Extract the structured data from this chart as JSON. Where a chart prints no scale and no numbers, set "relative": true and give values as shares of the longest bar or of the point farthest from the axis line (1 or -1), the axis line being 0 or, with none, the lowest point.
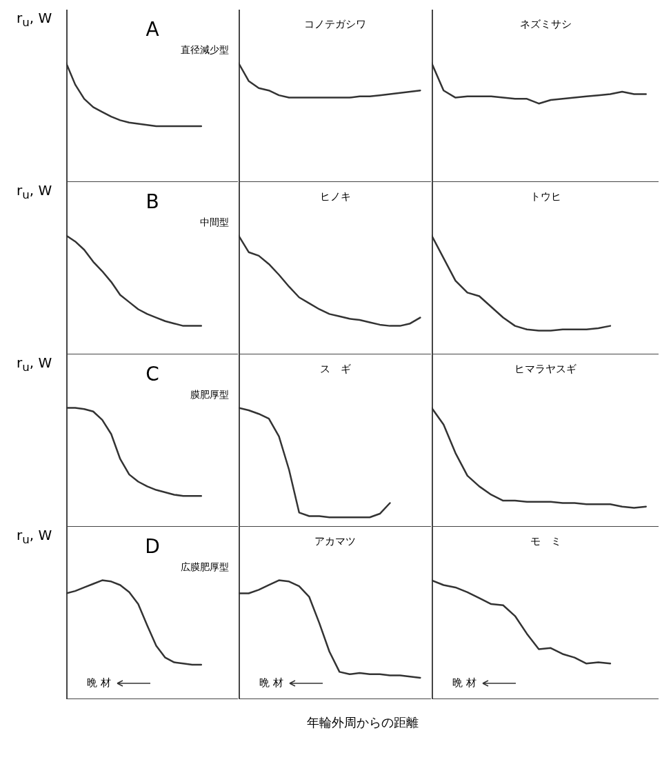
{
  "chart_data": [
    {
      "type": "line",
      "relative": true,
      "title": "A",
      "subtitle": "直径減少型",
      "ylabel": "r$_{u}$, W",
      "categories": [
        null,
        null,
        null,
        null,
        null,
        null,
        null,
        null,
        null,
        null,
        null,
        null,
        null,
        null,
        null,
        null,
        null,
        null,
        null,
        null
      ],
      "series": [
        {
          "color": "#333333",
          "values": [
            1,
            0.82,
            0.7,
            0.63,
            0.59,
            0.55,
            0.52,
            0.5,
            0.49,
            0.48,
            0.47,
            0.47,
            0.47,
            0.47,
            0.47,
            0.47,
            null,
            null,
            null,
            null
          ]
        }
      ]
    },
    {
      "type": "line",
      "relative": true,
      "title": "コノテガシワ",
      "categories": [
        null,
        null,
        null,
        null,
        null,
        null,
        null,
        null,
        null,
        null,
        null,
        null,
        null,
        null,
        null,
        null,
        null,
        null,
        null,
        null
      ],
      "series": [
        {
          "color": "#333333",
          "values": [
            1,
            0.85,
            0.79,
            0.77,
            0.73,
            0.71,
            0.71,
            0.71,
            0.71,
            0.71,
            0.71,
            0.71,
            0.72,
            0.72,
            0.73,
            0.74,
            0.75,
            0.76,
            0.77,
            null
          ]
        }
      ]
    },
    {
      "type": "line",
      "relative": true,
      "title": "ネズミサシ",
      "categories": [
        null,
        null,
        null,
        null,
        null,
        null,
        null,
        null,
        null,
        null,
        null,
        null,
        null,
        null,
        null,
        null,
        null,
        null,
        null,
        null
      ],
      "series": [
        {
          "color": "#333333",
          "values": [
            1,
            0.77,
            0.71,
            0.72,
            0.72,
            0.72,
            0.71,
            0.7,
            0.7,
            0.66,
            0.69,
            0.7,
            0.71,
            0.72,
            0.73,
            0.74,
            0.76,
            0.74,
            0.74,
            null
          ]
        }
      ]
    },
    {
      "type": "line",
      "relative": true,
      "title": "B",
      "subtitle": "中間型",
      "ylabel": "r$_{u}$, W",
      "categories": [
        null,
        null,
        null,
        null,
        null,
        null,
        null,
        null,
        null,
        null,
        null,
        null,
        null,
        null,
        null,
        null,
        null,
        null,
        null,
        null
      ],
      "series": [
        {
          "color": "#333333",
          "values": [
            1,
            0.95,
            0.88,
            0.78,
            0.7,
            0.61,
            0.5,
            0.44,
            0.38,
            0.34,
            0.31,
            0.28,
            0.26,
            0.24,
            0.24,
            0.24,
            null,
            null,
            null,
            null
          ]
        }
      ]
    },
    {
      "type": "line",
      "relative": true,
      "title": "ヒノキ",
      "categories": [
        null,
        null,
        null,
        null,
        null,
        null,
        null,
        null,
        null,
        null,
        null,
        null,
        null,
        null,
        null,
        null,
        null,
        null,
        null,
        null
      ],
      "series": [
        {
          "color": "#333333",
          "values": [
            1,
            0.86,
            0.83,
            0.76,
            0.67,
            0.57,
            0.48,
            0.43,
            0.38,
            0.34,
            0.32,
            0.3,
            0.29,
            0.27,
            0.25,
            0.24,
            0.24,
            0.26,
            0.31,
            null
          ]
        }
      ]
    },
    {
      "type": "line",
      "relative": true,
      "title": "トウヒ",
      "categories": [
        null,
        null,
        null,
        null,
        null,
        null,
        null,
        null,
        null,
        null,
        null,
        null,
        null,
        null,
        null,
        null,
        null,
        null,
        null,
        null
      ],
      "series": [
        {
          "color": "#333333",
          "values": [
            1,
            0.81,
            0.62,
            0.52,
            0.49,
            0.4,
            0.31,
            0.24,
            0.21,
            0.2,
            0.2,
            0.21,
            0.21,
            0.21,
            0.22,
            0.24,
            null,
            null,
            null,
            null
          ]
        }
      ]
    },
    {
      "type": "line",
      "relative": true,
      "title": "C",
      "subtitle": "膜肥厚型",
      "ylabel": "r$_{u}$, W",
      "categories": [
        null,
        null,
        null,
        null,
        null,
        null,
        null,
        null,
        null,
        null,
        null,
        null,
        null,
        null,
        null,
        null,
        null,
        null,
        null,
        null
      ],
      "series": [
        {
          "color": "#333333",
          "values": [
            1,
            1,
            0.99,
            0.97,
            0.9,
            0.78,
            0.57,
            0.44,
            0.38,
            0.34,
            0.31,
            0.29,
            0.27,
            0.26,
            0.26,
            0.26,
            null,
            null,
            null,
            null
          ]
        }
      ]
    },
    {
      "type": "line",
      "relative": true,
      "title": "ス　ギ",
      "categories": [
        null,
        null,
        null,
        null,
        null,
        null,
        null,
        null,
        null,
        null,
        null,
        null,
        null,
        null,
        null,
        null,
        null,
        null,
        null,
        null
      ],
      "series": [
        {
          "color": "#333333",
          "values": [
            1,
            0.98,
            0.95,
            0.91,
            0.76,
            0.48,
            0.12,
            0.09,
            0.09,
            0.08,
            0.08,
            0.08,
            0.08,
            0.08,
            0.11,
            0.2,
            null,
            null,
            null,
            null
          ]
        }
      ]
    },
    {
      "type": "line",
      "relative": true,
      "title": "ヒマラヤスギ",
      "categories": [
        null,
        null,
        null,
        null,
        null,
        null,
        null,
        null,
        null,
        null,
        null,
        null,
        null,
        null,
        null,
        null,
        null,
        null,
        null,
        null
      ],
      "series": [
        {
          "color": "#333333",
          "values": [
            1,
            0.86,
            0.62,
            0.43,
            0.34,
            0.27,
            0.22,
            0.22,
            0.21,
            0.21,
            0.21,
            0.2,
            0.2,
            0.19,
            0.19,
            0.19,
            0.17,
            0.16,
            0.17,
            null
          ]
        }
      ]
    },
    {
      "type": "line",
      "relative": true,
      "title": "D",
      "subtitle": "広膜肥厚型",
      "ylabel": "r$_{u}$, W",
      "annotations": [
        "晩 材"
      ],
      "categories": [
        null,
        null,
        null,
        null,
        null,
        null,
        null,
        null,
        null,
        null,
        null,
        null,
        null,
        null,
        null,
        null,
        null,
        null,
        null,
        null
      ],
      "series": [
        {
          "color": "#333333",
          "values": [
            0.89,
            0.91,
            0.94,
            0.97,
            1,
            0.99,
            0.96,
            0.9,
            0.8,
            0.62,
            0.45,
            0.35,
            0.31,
            0.3,
            0.29,
            0.29,
            null,
            null,
            null,
            null
          ]
        }
      ]
    },
    {
      "type": "line",
      "relative": true,
      "title": "アカマツ",
      "xlabel": "年輪外周からの距離",
      "annotations": [
        "晩 材"
      ],
      "categories": [
        null,
        null,
        null,
        null,
        null,
        null,
        null,
        null,
        null,
        null,
        null,
        null,
        null,
        null,
        null,
        null,
        null,
        null,
        null,
        null
      ],
      "series": [
        {
          "color": "#333333",
          "values": [
            0.89,
            0.89,
            0.92,
            0.96,
            1,
            0.99,
            0.95,
            0.86,
            0.64,
            0.4,
            0.23,
            0.21,
            0.22,
            0.21,
            0.21,
            0.2,
            0.2,
            0.19,
            0.18,
            null
          ]
        }
      ]
    },
    {
      "type": "line",
      "relative": true,
      "title": "モ　ミ",
      "annotations": [
        "晩 材"
      ],
      "categories": [
        null,
        null,
        null,
        null,
        null,
        null,
        null,
        null,
        null,
        null,
        null,
        null,
        null,
        null,
        null,
        null,
        null,
        null,
        null,
        null
      ],
      "series": [
        {
          "color": "#333333",
          "values": [
            1,
            0.96,
            0.94,
            0.9,
            0.85,
            0.8,
            0.79,
            0.7,
            0.55,
            0.42,
            0.43,
            0.38,
            0.35,
            0.3,
            0.31,
            0.3,
            null,
            null,
            null,
            null
          ]
        }
      ]
    }
  ]
}
